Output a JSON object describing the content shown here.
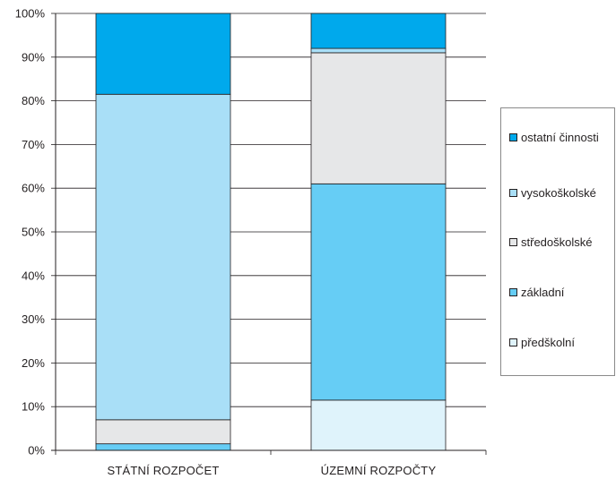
{
  "chart_data": {
    "type": "bar",
    "stacked": true,
    "percent": true,
    "categories": [
      "STÁTNÍ ROZPOČET",
      "ÚZEMNÍ ROZPOČTY"
    ],
    "series": [
      {
        "name": "předškolní",
        "color": "#dff3fb",
        "values": [
          0.0,
          11.5
        ]
      },
      {
        "name": "základní",
        "color": "#66cdf5",
        "values": [
          1.5,
          49.5
        ]
      },
      {
        "name": "středoškolské",
        "color": "#e6e7e8",
        "values": [
          5.5,
          30.0
        ]
      },
      {
        "name": "vysokoškolské",
        "color": "#a9dff7",
        "values": [
          74.5,
          1.0
        ]
      },
      {
        "name": "ostatní činnosti",
        "color": "#00a9ec",
        "values": [
          18.5,
          8.0
        ]
      }
    ],
    "ylim": [
      0,
      100
    ],
    "yticks": [
      "0%",
      "10%",
      "20%",
      "30%",
      "40%",
      "50%",
      "60%",
      "70%",
      "80%",
      "90%",
      "100%"
    ],
    "grid": true,
    "legend_position": "right",
    "legend_order": [
      "ostatní činnosti",
      "vysokoškolské",
      "středoškolské",
      "základní",
      "předškolní"
    ]
  }
}
